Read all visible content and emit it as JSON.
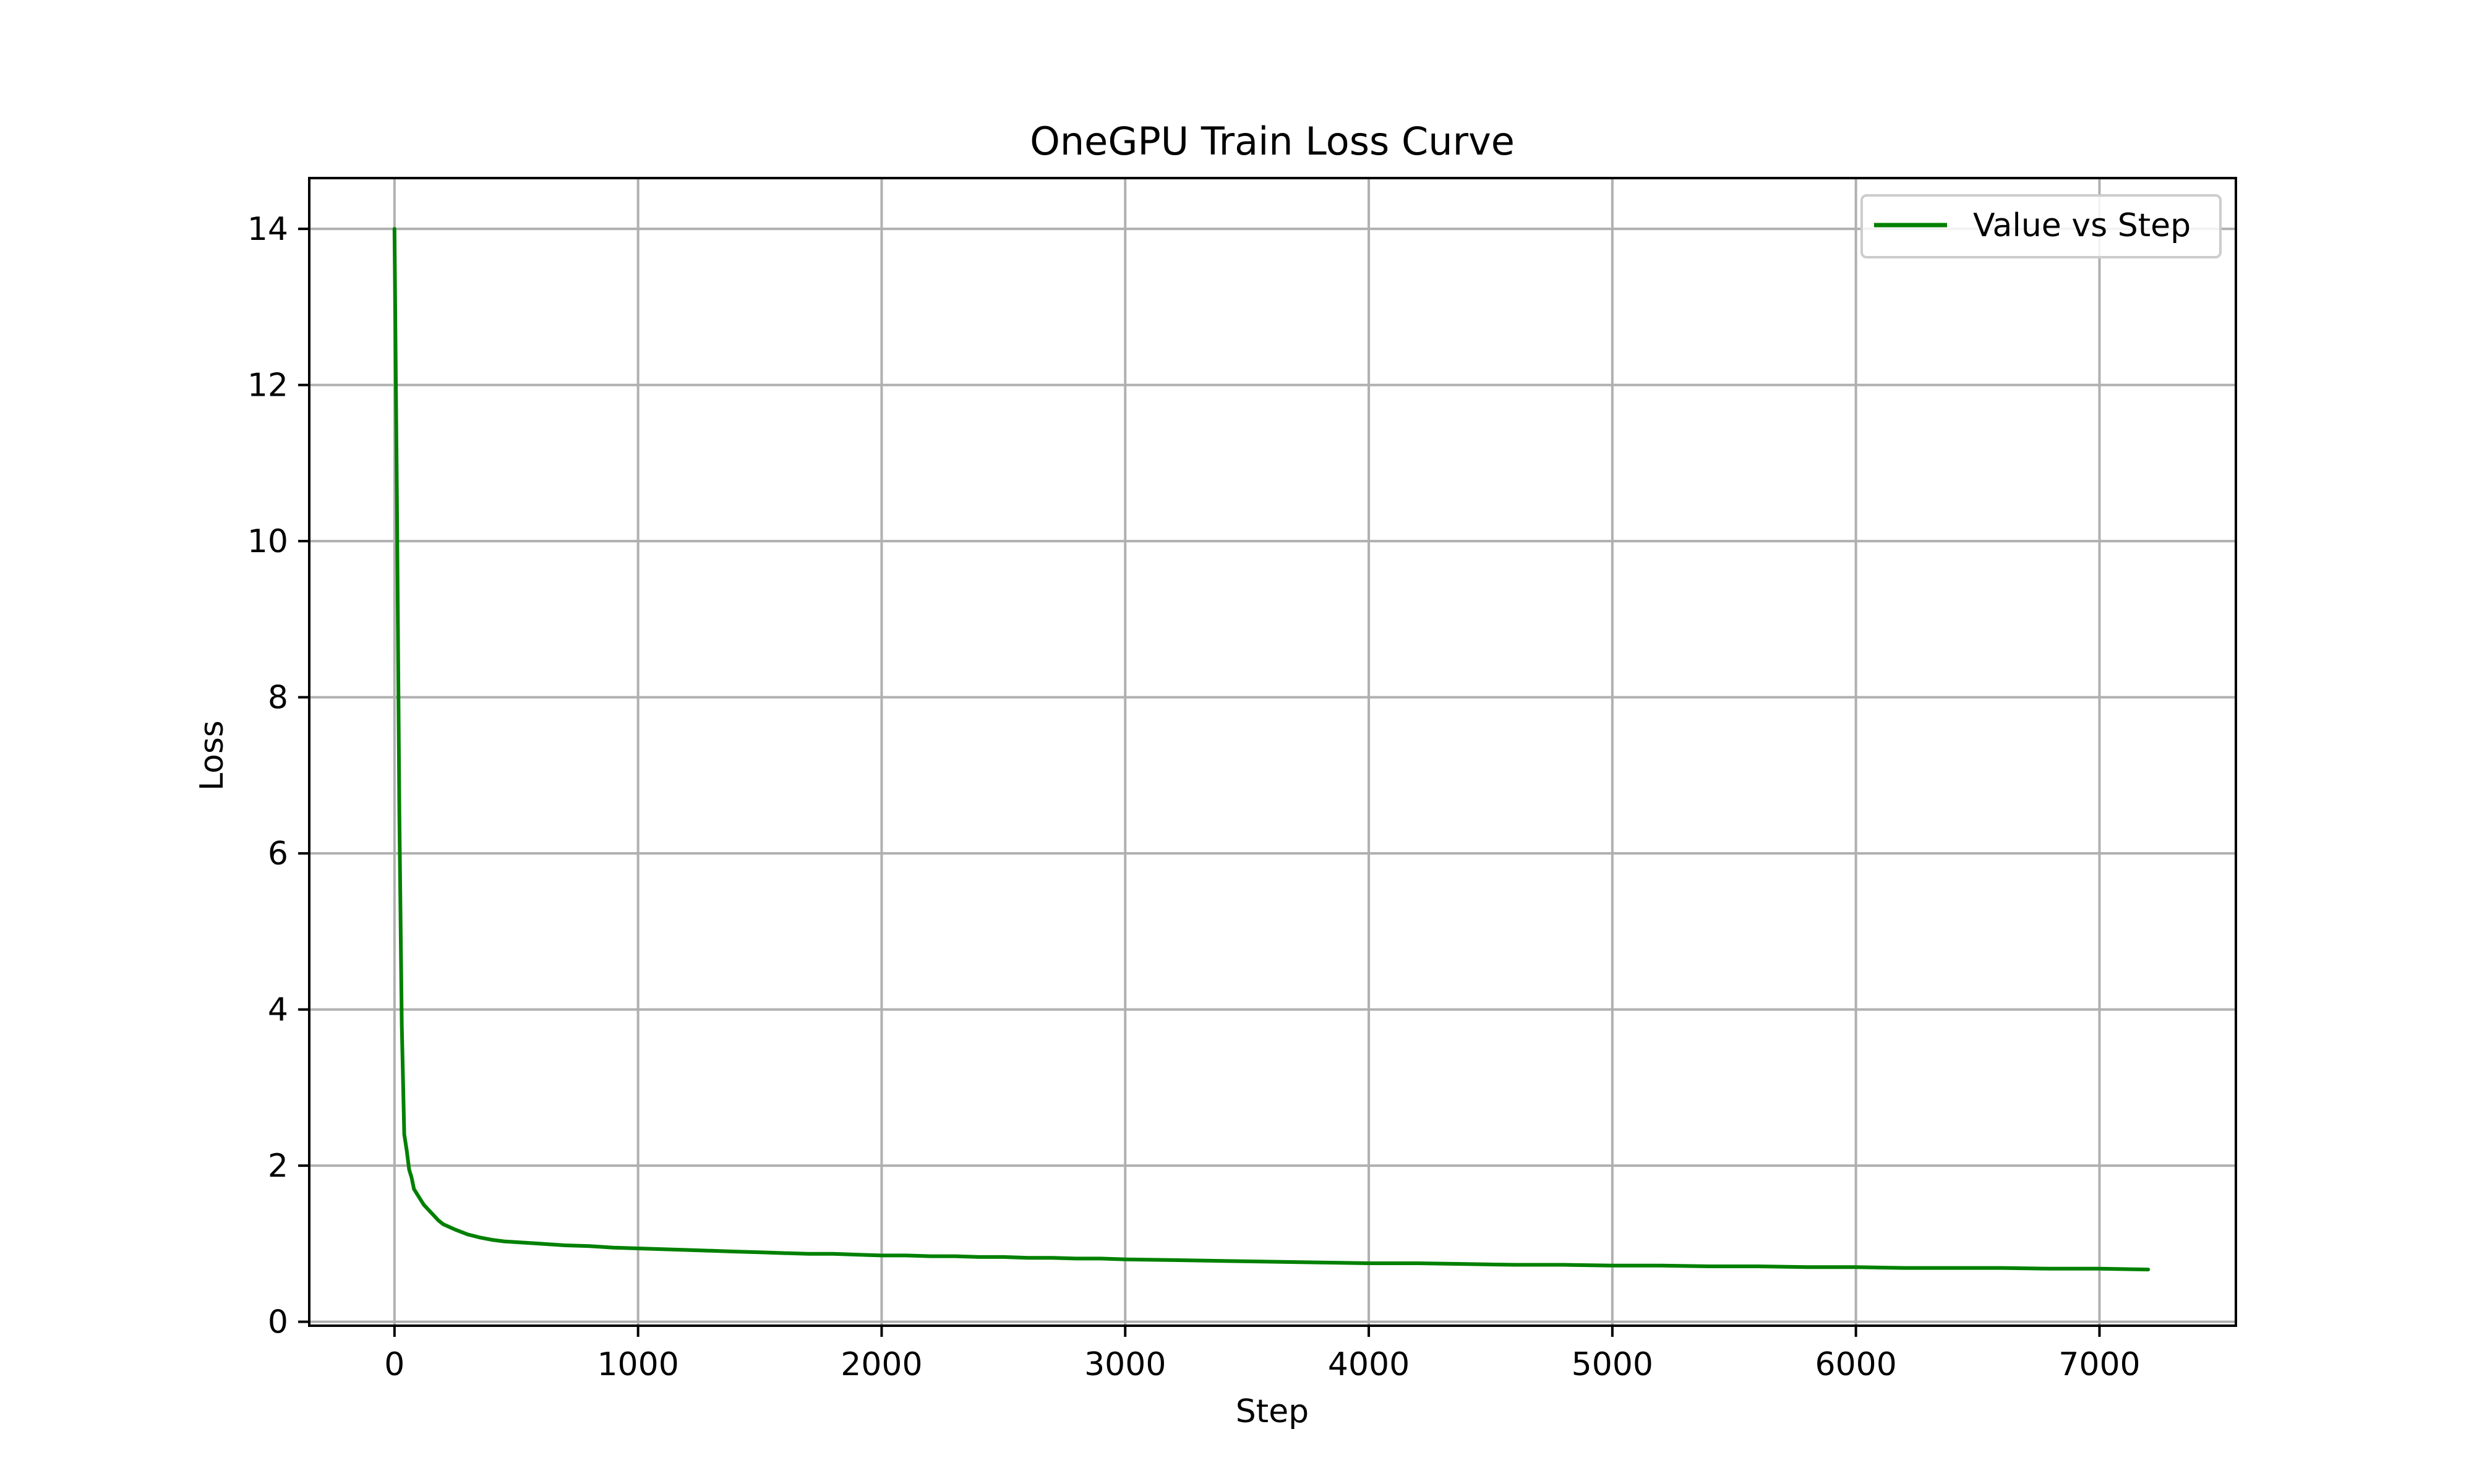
{
  "chart_data": {
    "type": "line",
    "title": "OneGPU Train Loss Curve",
    "xlabel": "Step",
    "ylabel": "Loss",
    "xlim": [
      -350,
      7560
    ],
    "ylim": [
      -0.05,
      14.65
    ],
    "xticks": [
      0,
      1000,
      2000,
      3000,
      4000,
      5000,
      6000,
      7000
    ],
    "yticks": [
      0,
      2,
      4,
      6,
      8,
      10,
      12,
      14
    ],
    "grid": true,
    "legend_position": "top-right",
    "series": [
      {
        "name": "Value vs Step",
        "color": "#008000",
        "x": [
          0,
          10,
          20,
          30,
          40,
          50,
          60,
          70,
          80,
          100,
          120,
          150,
          180,
          200,
          250,
          300,
          350,
          400,
          450,
          500,
          600,
          700,
          800,
          900,
          1000,
          1100,
          1200,
          1300,
          1400,
          1500,
          1600,
          1700,
          1800,
          1900,
          2000,
          2100,
          2200,
          2300,
          2400,
          2500,
          2600,
          2700,
          2800,
          2900,
          3000,
          3200,
          3400,
          3600,
          3800,
          4000,
          4200,
          4400,
          4600,
          4800,
          5000,
          5200,
          5400,
          5600,
          5800,
          6000,
          6200,
          6400,
          6600,
          6800,
          7000,
          7200
        ],
        "y": [
          14.0,
          10.5,
          6.5,
          3.8,
          2.4,
          2.2,
          1.95,
          1.85,
          1.7,
          1.6,
          1.5,
          1.4,
          1.3,
          1.25,
          1.18,
          1.12,
          1.08,
          1.05,
          1.03,
          1.02,
          1.0,
          0.98,
          0.97,
          0.95,
          0.94,
          0.93,
          0.92,
          0.91,
          0.9,
          0.89,
          0.88,
          0.87,
          0.87,
          0.86,
          0.85,
          0.85,
          0.84,
          0.84,
          0.83,
          0.83,
          0.82,
          0.82,
          0.81,
          0.81,
          0.8,
          0.79,
          0.78,
          0.77,
          0.76,
          0.75,
          0.75,
          0.74,
          0.73,
          0.73,
          0.72,
          0.72,
          0.71,
          0.71,
          0.7,
          0.7,
          0.69,
          0.69,
          0.69,
          0.68,
          0.68,
          0.67
        ]
      }
    ]
  }
}
